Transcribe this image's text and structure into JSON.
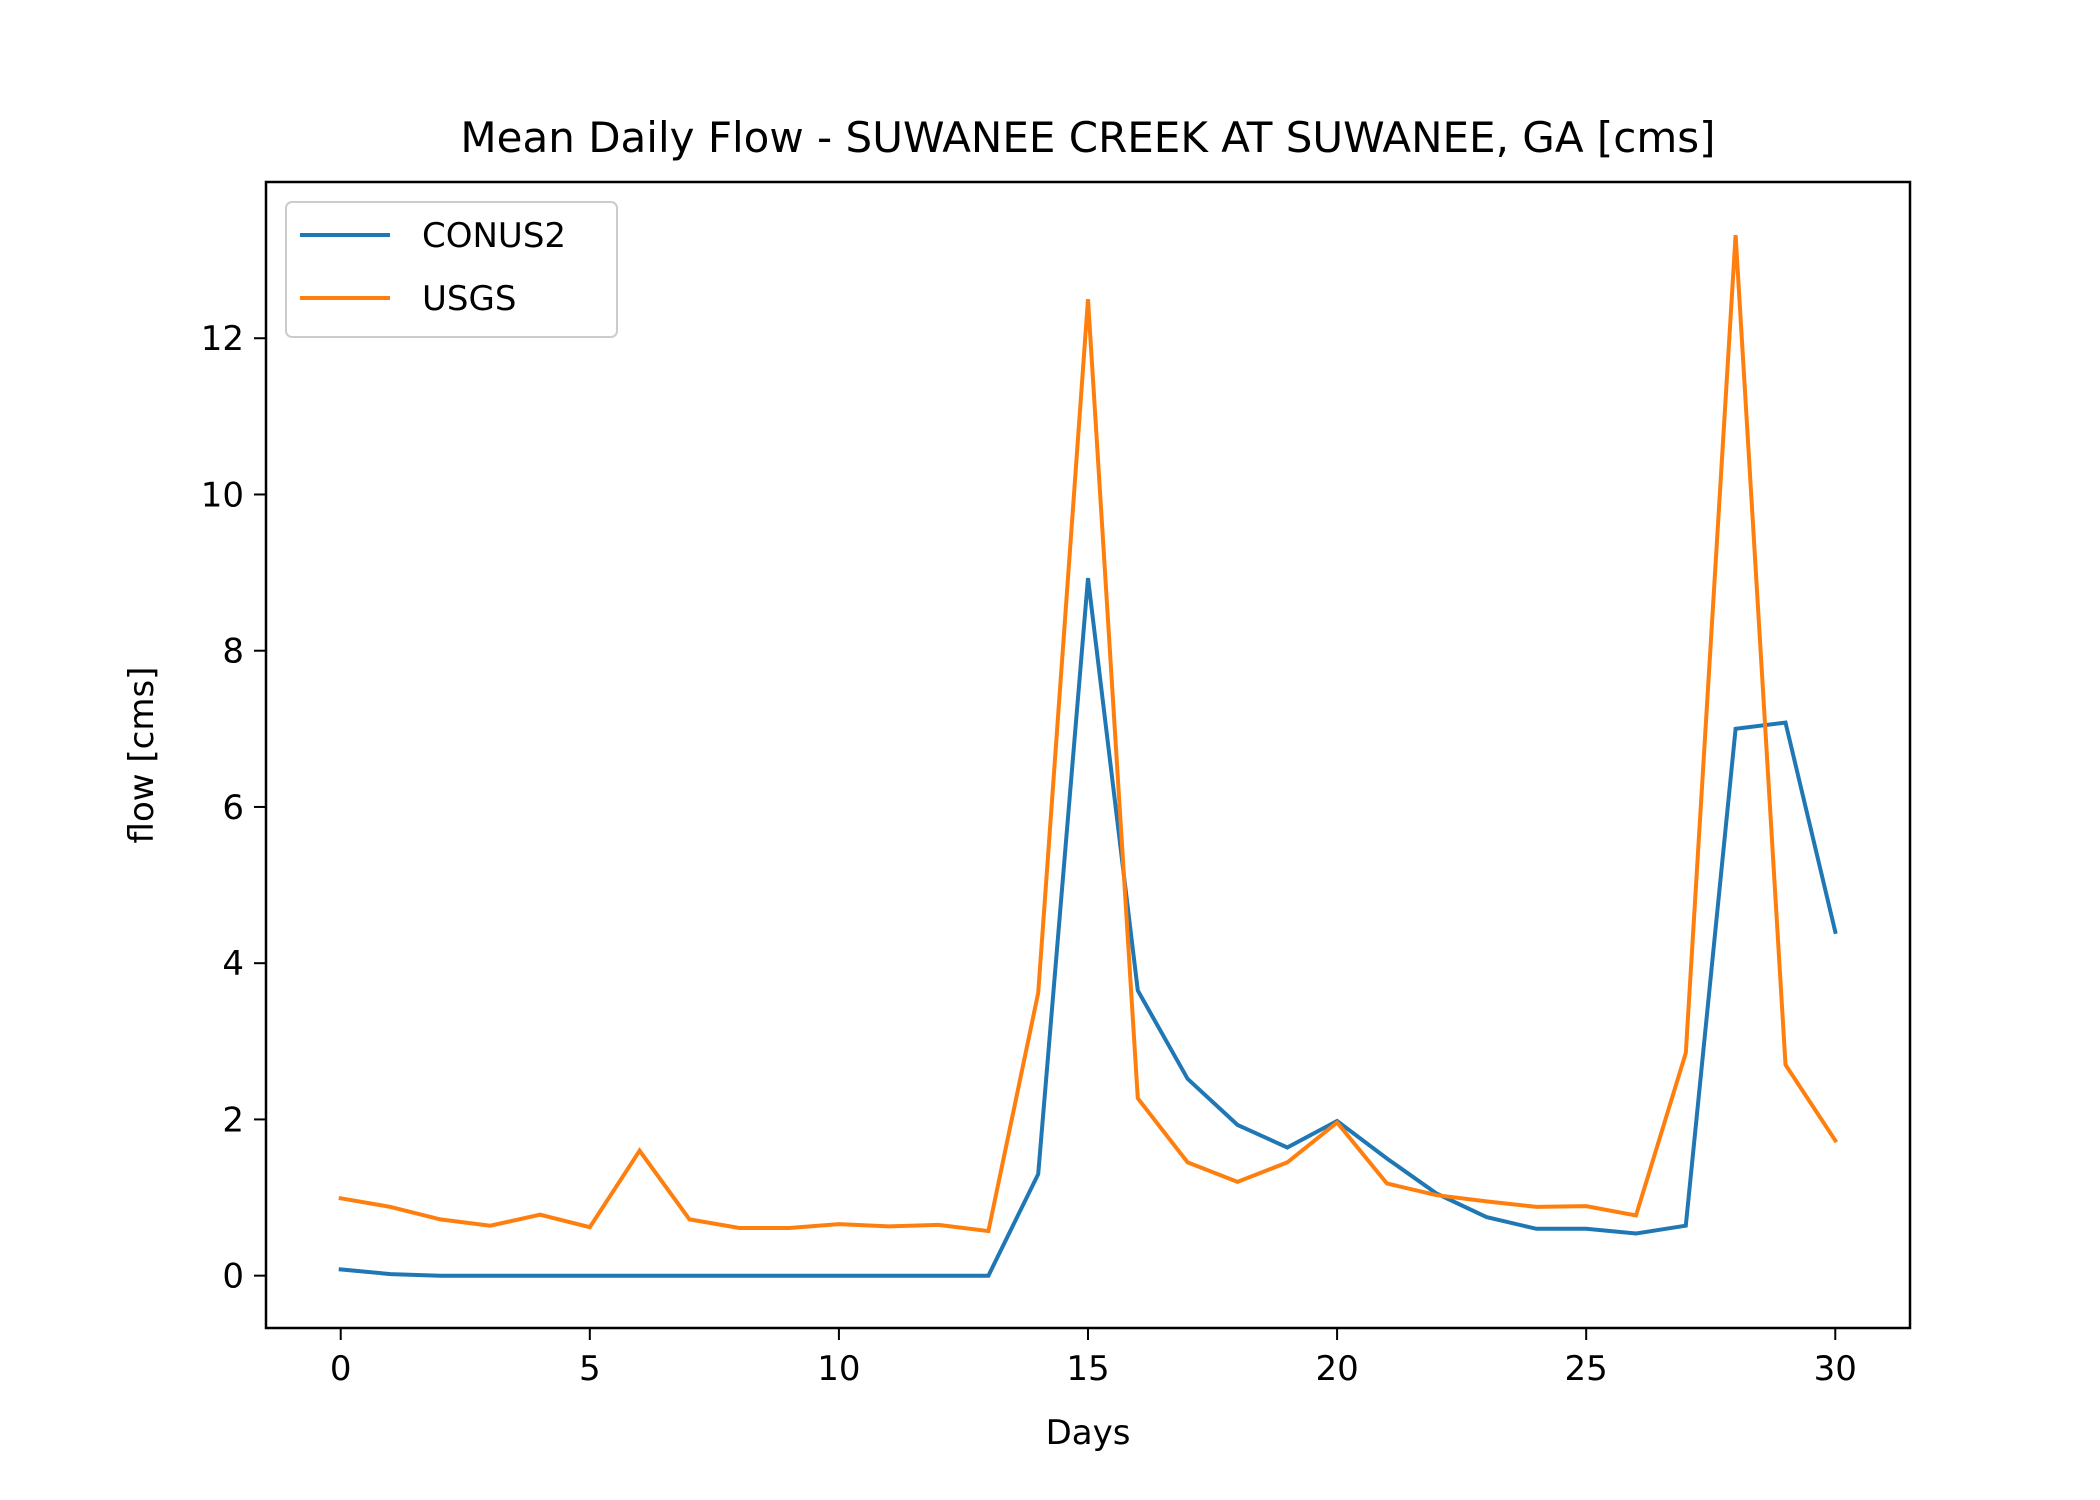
{
  "chart_data": {
    "type": "line",
    "title": "Mean Daily Flow - SUWANEE CREEK AT SUWANEE, GA [cms]",
    "xlabel": "Days",
    "ylabel": "flow [cms]",
    "xlim": [
      -1.5,
      31.5
    ],
    "ylim": [
      -0.67,
      14.0
    ],
    "xticks": [
      0,
      5,
      10,
      15,
      20,
      25,
      30
    ],
    "yticks": [
      0,
      2,
      4,
      6,
      8,
      10,
      12
    ],
    "grid": false,
    "legend_position": "top-left",
    "x": [
      0,
      1,
      2,
      3,
      4,
      5,
      6,
      7,
      8,
      9,
      10,
      11,
      12,
      13,
      14,
      15,
      16,
      17,
      18,
      19,
      20,
      21,
      22,
      23,
      24,
      25,
      26,
      27,
      28,
      29,
      30
    ],
    "series": [
      {
        "name": "CONUS2",
        "color": "#1f77b4",
        "values": [
          0.08,
          0.02,
          0.0,
          0.0,
          0.0,
          0.0,
          0.0,
          0.0,
          0.0,
          0.0,
          0.0,
          0.0,
          0.0,
          0.0,
          1.3,
          8.93,
          3.65,
          2.52,
          1.93,
          1.64,
          1.98,
          1.5,
          1.05,
          0.75,
          0.6,
          0.6,
          0.54,
          0.64,
          7.0,
          7.08,
          4.4
        ]
      },
      {
        "name": "USGS",
        "color": "#ff7f0e",
        "values": [
          0.99,
          0.88,
          0.72,
          0.64,
          0.78,
          0.62,
          1.6,
          0.72,
          0.61,
          0.61,
          0.66,
          0.63,
          0.65,
          0.57,
          3.62,
          12.5,
          2.27,
          1.45,
          1.2,
          1.45,
          1.96,
          1.18,
          1.03,
          0.95,
          0.88,
          0.89,
          0.77,
          2.85,
          13.32,
          2.7,
          1.73
        ]
      }
    ]
  }
}
